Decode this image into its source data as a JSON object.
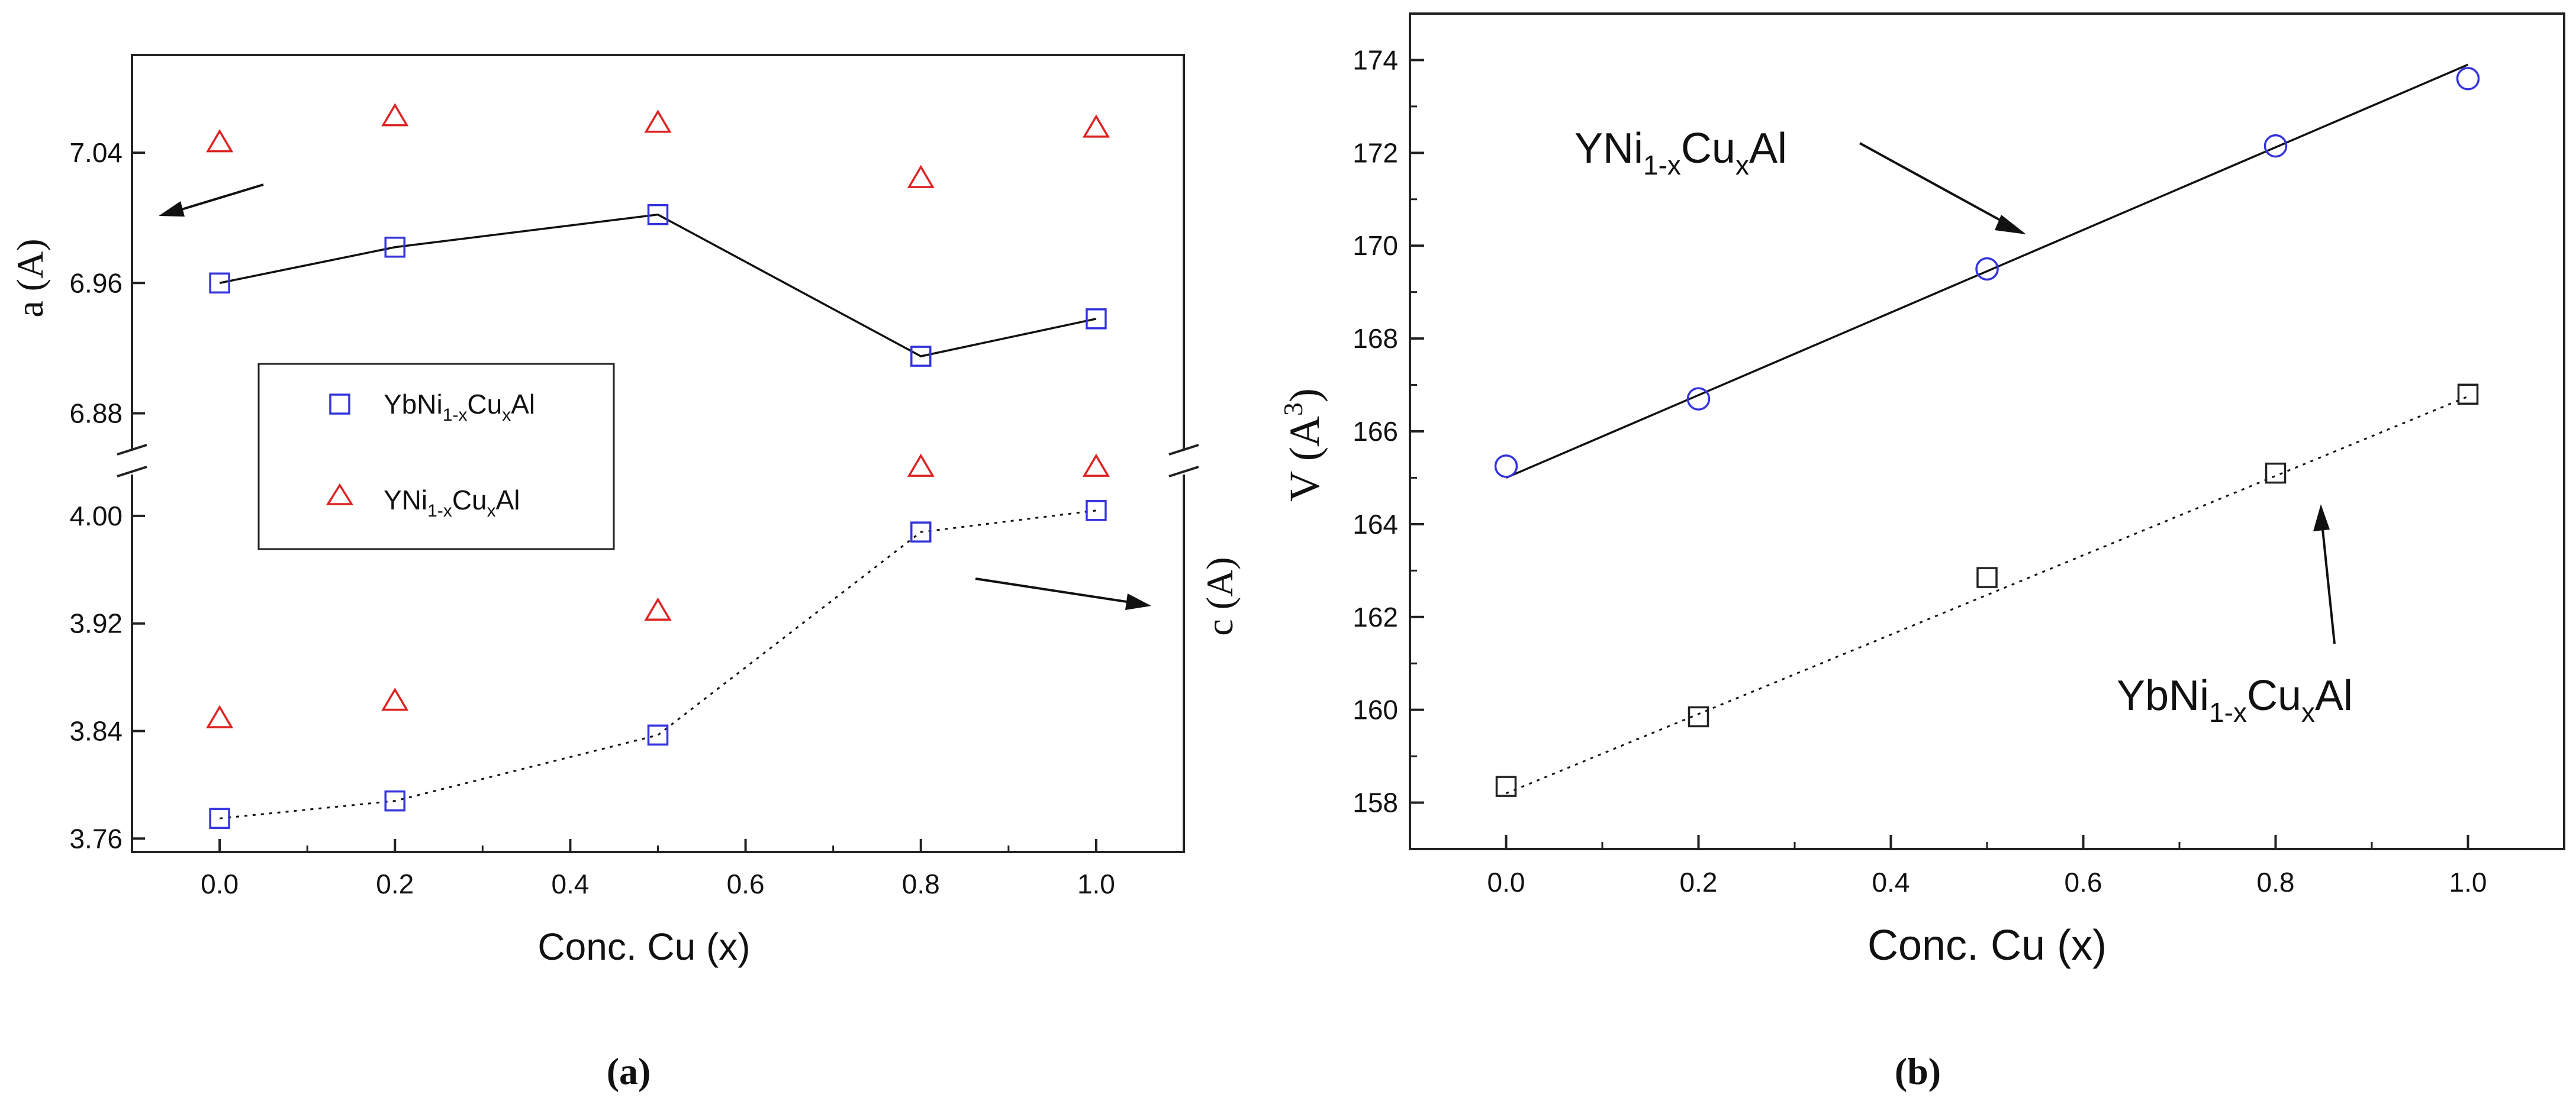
{
  "chart_data": [
    {
      "panel_label": "(a)",
      "type": "scatter",
      "xlabel": "Conc. Cu (x)",
      "x_range": [
        -0.1,
        1.1
      ],
      "x_ticks": [
        "0.0",
        "0.2",
        "0.4",
        "0.6",
        "0.8",
        "1.0"
      ],
      "upper_axis": {
        "ylabel": "a (A)",
        "y_range": [
          6.85,
          7.1
        ],
        "y_ticks": [
          "6.88",
          "6.96",
          "7.04"
        ]
      },
      "lower_axis": {
        "ylabel": "c (A)",
        "y_range": [
          3.75,
          4.04
        ],
        "y_ticks": [
          "3.76",
          "3.84",
          "3.92",
          "4.00"
        ]
      },
      "legend": {
        "placement": "center-left",
        "entries": [
          {
            "main": "YbNi",
            "sub1": "1-x",
            "mid": "Cu",
            "sub2": "x",
            "tail": "Al"
          },
          {
            "main": "YNi",
            "sub1": "1-x",
            "mid": "Cu",
            "sub2": "x",
            "tail": "Al"
          }
        ]
      },
      "series": [
        {
          "compound": "YbNi1-xCuxAl",
          "quantity": "a",
          "marker": "square",
          "color": "#3333dd",
          "line": "solid",
          "x": [
            0.0,
            0.2,
            0.5,
            0.8,
            1.0
          ],
          "y": [
            6.96,
            6.982,
            7.002,
            6.915,
            6.938
          ]
        },
        {
          "compound": "YNi1-xCuxAl",
          "quantity": "a",
          "marker": "triangle",
          "color": "#dd2222",
          "line": "none",
          "x": [
            0.0,
            0.2,
            0.5,
            0.8,
            1.0
          ],
          "y": [
            7.046,
            7.062,
            7.058,
            7.024,
            7.055
          ]
        },
        {
          "compound": "YbNi1-xCuxAl",
          "quantity": "c",
          "marker": "square",
          "color": "#3333dd",
          "line": "dotted",
          "x": [
            0.0,
            0.2,
            0.5,
            0.8,
            1.0
          ],
          "y": [
            3.775,
            3.788,
            3.837,
            3.988,
            4.004
          ]
        },
        {
          "compound": "YNi1-xCuxAl",
          "quantity": "c",
          "marker": "triangle",
          "color": "#dd2222",
          "line": "none",
          "x": [
            0.0,
            0.2,
            0.5,
            0.8,
            1.0
          ],
          "y": [
            3.849,
            3.862,
            3.929,
            4.036,
            4.036
          ]
        }
      ]
    },
    {
      "panel_label": "(b)",
      "type": "scatter",
      "xlabel": "Conc. Cu (x)",
      "ylabel": "V (A3)",
      "x_range": [
        -0.1,
        1.1
      ],
      "y_range": [
        157,
        175
      ],
      "x_ticks": [
        "0.0",
        "0.2",
        "0.4",
        "0.6",
        "0.8",
        "1.0"
      ],
      "y_ticks": [
        "158",
        "160",
        "162",
        "164",
        "166",
        "168",
        "170",
        "172",
        "174"
      ],
      "annotations": [
        {
          "main": "YNi",
          "sub1": "1-x",
          "mid": "Cu",
          "sub2": "x",
          "tail": "Al"
        },
        {
          "main": "YbNi",
          "sub1": "1-x",
          "mid": "Cu",
          "sub2": "x",
          "tail": "Al"
        }
      ],
      "series": [
        {
          "compound": "YNi1-xCuxAl",
          "marker": "circle",
          "color": "#3333dd",
          "line": "solid linear fit",
          "x": [
            0.0,
            0.2,
            0.5,
            0.8,
            1.0
          ],
          "y": [
            165.25,
            166.7,
            169.5,
            172.15,
            173.6
          ],
          "fit": {
            "x": [
              0.0,
              1.0
            ],
            "y": [
              165.0,
              173.9
            ]
          }
        },
        {
          "compound": "YbNi1-xCuxAl",
          "marker": "square",
          "color": "#222222",
          "line": "dotted linear fit",
          "x": [
            0.0,
            0.2,
            0.5,
            0.8,
            1.0
          ],
          "y": [
            158.35,
            159.85,
            162.85,
            165.1,
            166.8
          ],
          "fit": {
            "x": [
              0.0,
              1.0
            ],
            "y": [
              158.2,
              166.75
            ]
          }
        }
      ]
    }
  ]
}
